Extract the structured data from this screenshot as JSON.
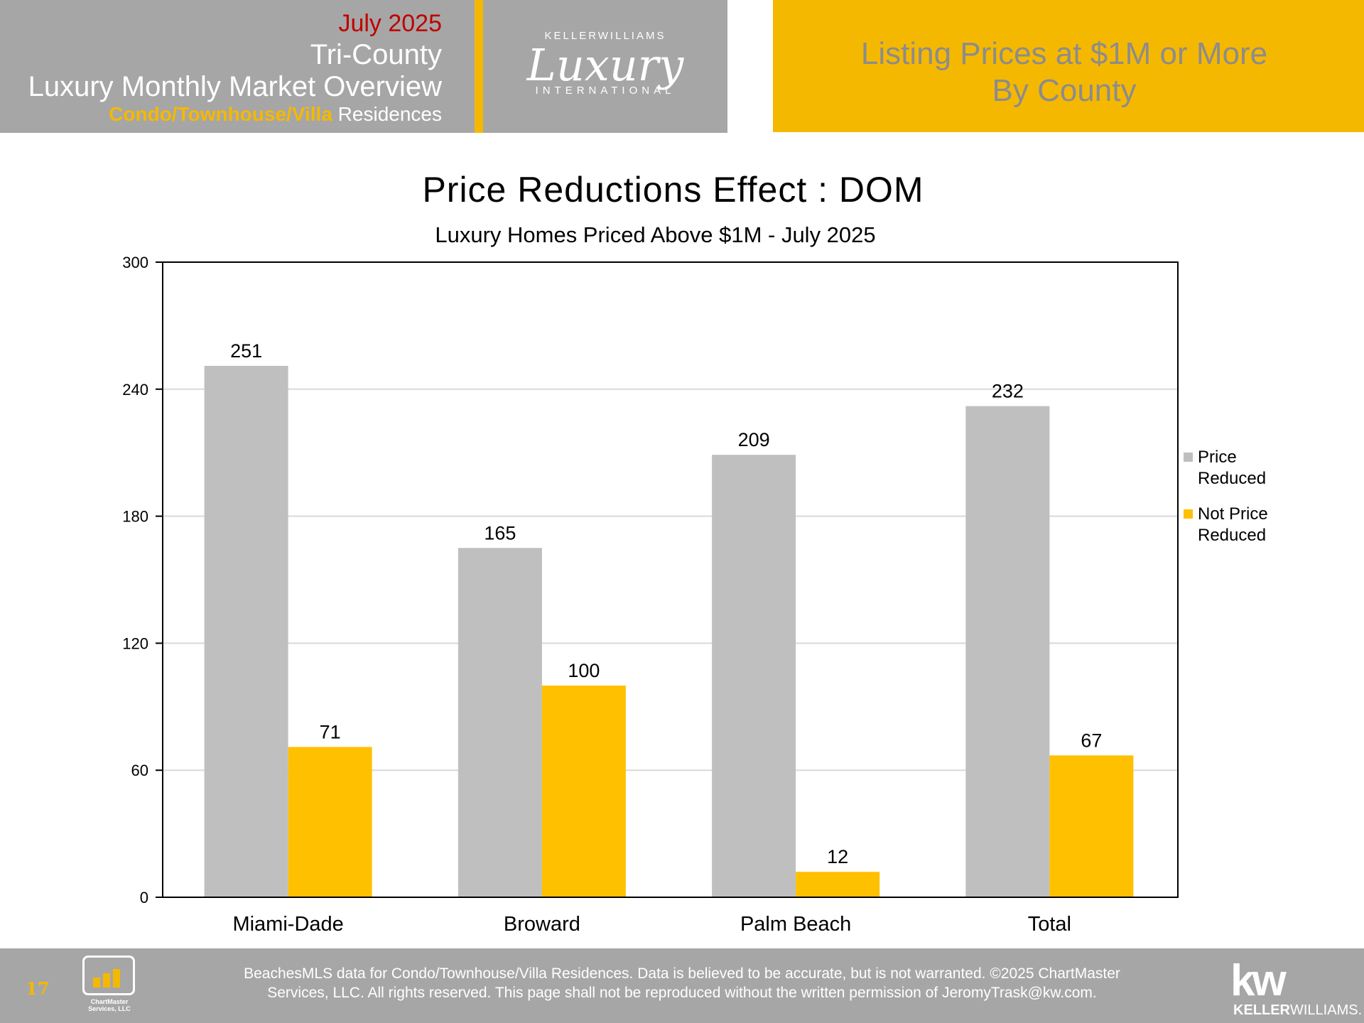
{
  "header": {
    "date": "July 2025",
    "region": "Tri-County",
    "report": "Luxury Monthly Market Overview",
    "property_type_accent": "Condo/Townhouse/Villa",
    "property_type_rest": " Residences",
    "logo_top": "KELLERWILLIAMS",
    "logo_script": "Luxury",
    "logo_bottom": "INTERNATIONAL",
    "right_line1": "Listing Prices at $1M or More",
    "right_line2": "By County"
  },
  "colors": {
    "gold": "#f5b800",
    "gray_bar": "#bfbfbf",
    "header_gray": "#a6a6a6",
    "date_red": "#c00000"
  },
  "chart_data": {
    "type": "bar",
    "title": "Price Reductions Effect : DOM",
    "subtitle": "Luxury Homes Priced Above $1M - July 2025",
    "categories": [
      "Miami-Dade",
      "Broward",
      "Palm Beach",
      "Total"
    ],
    "series": [
      {
        "name": "Price Reduced",
        "legend_lines": [
          "Price",
          "Reduced"
        ],
        "color": "#bfbfbf",
        "values": [
          251,
          165,
          209,
          232
        ]
      },
      {
        "name": "Not Price Reduced",
        "legend_lines": [
          "Not Price",
          "Reduced"
        ],
        "color": "#ffc000",
        "values": [
          71,
          100,
          12,
          67
        ]
      }
    ],
    "ylim": [
      0,
      300
    ],
    "yticks": [
      0,
      60,
      120,
      180,
      240,
      300
    ],
    "grid": true,
    "legend_position": "right",
    "xlabel": "",
    "ylabel": ""
  },
  "footer": {
    "page_number": "17",
    "chartmaster_line1": "ChartMaster",
    "chartmaster_line2": "Services, LLC",
    "disclaimer_line1": "BeachesMLS data for Condo/Townhouse/Villa Residences.  Data is believed to be accurate, but is not warranted.   ©2025  ChartMaster",
    "disclaimer_line2": "Services, LLC.  All rights reserved. This page shall not be reproduced without the written permission of JeromyTrask@kw.com.",
    "kw_mark": "kw",
    "kw_name_bold": "KELLER",
    "kw_name_rest": "WILLIAMS."
  }
}
